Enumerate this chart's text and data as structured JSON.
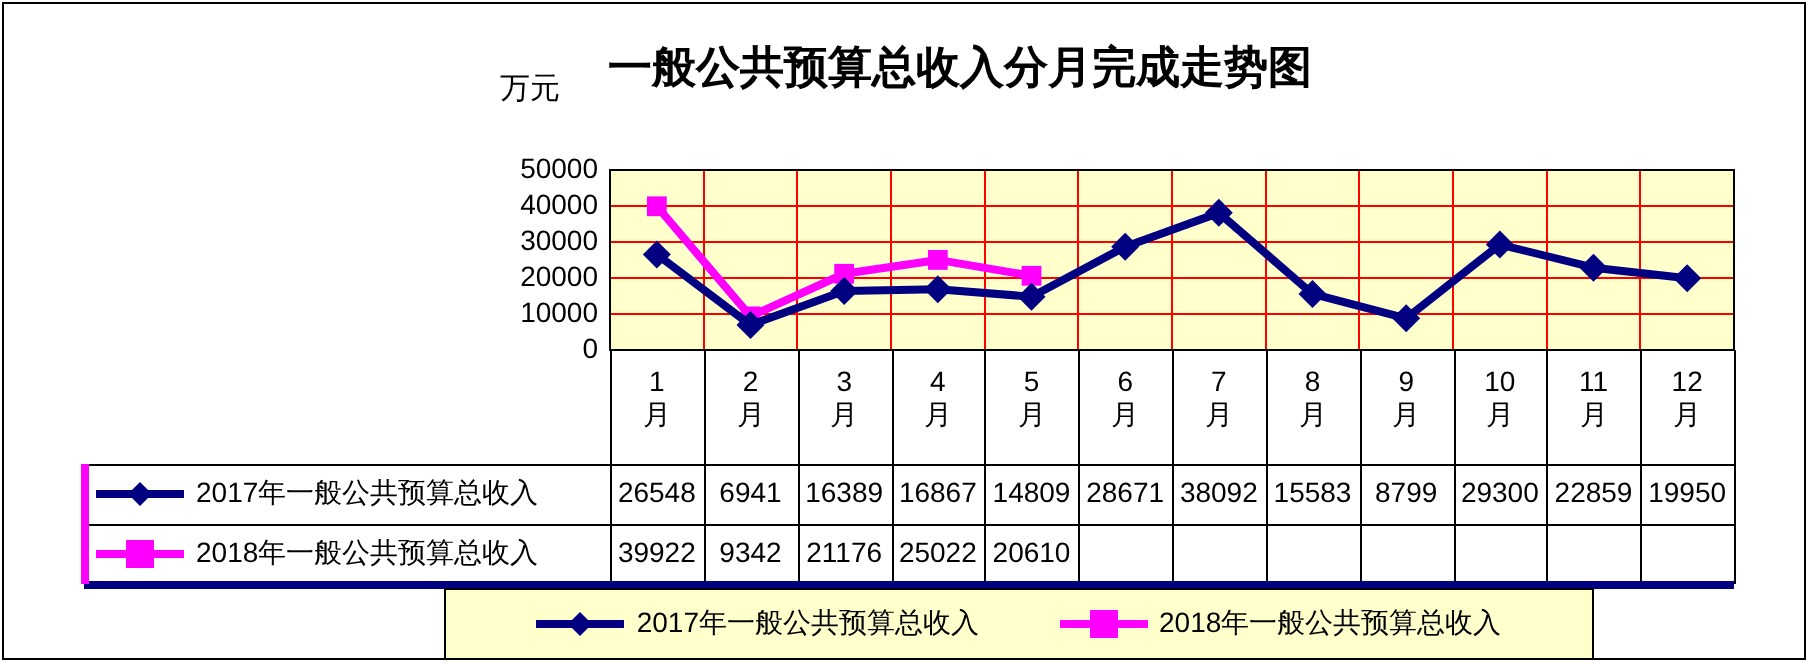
{
  "chart_data": {
    "type": "line",
    "title": "一般公共预算总收入分月完成走势图",
    "ylabel": "万元",
    "categories": [
      "1月",
      "2月",
      "3月",
      "4月",
      "5月",
      "6月",
      "7月",
      "8月",
      "9月",
      "10月",
      "11月",
      "12月"
    ],
    "series": [
      {
        "name": "2017年一般公共预算总收入",
        "color": "#000080",
        "marker": "diamond",
        "values": [
          26548,
          6941,
          16389,
          16867,
          14809,
          28671,
          38092,
          15583,
          8799,
          29300,
          22859,
          19950
        ]
      },
      {
        "name": "2018年一般公共预算总收入",
        "color": "#ff00ff",
        "marker": "square",
        "values": [
          39922,
          9342,
          21176,
          25022,
          20610,
          null,
          null,
          null,
          null,
          null,
          null,
          null
        ]
      }
    ],
    "ylim": [
      0,
      50000
    ],
    "yticks": [
      0,
      10000,
      20000,
      30000,
      40000,
      50000
    ],
    "grid": true,
    "legend": "bottom",
    "data_labels": true
  }
}
